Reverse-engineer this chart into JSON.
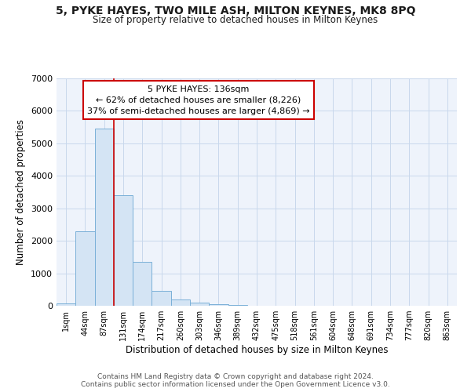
{
  "title1": "5, PYKE HAYES, TWO MILE ASH, MILTON KEYNES, MK8 8PQ",
  "title2": "Size of property relative to detached houses in Milton Keynes",
  "xlabel": "Distribution of detached houses by size in Milton Keynes",
  "ylabel": "Number of detached properties",
  "bin_labels": [
    "1sqm",
    "44sqm",
    "87sqm",
    "131sqm",
    "174sqm",
    "217sqm",
    "260sqm",
    "303sqm",
    "346sqm",
    "389sqm",
    "432sqm",
    "475sqm",
    "518sqm",
    "561sqm",
    "604sqm",
    "648sqm",
    "691sqm",
    "734sqm",
    "777sqm",
    "820sqm",
    "863sqm"
  ],
  "bar_heights": [
    70,
    2300,
    5450,
    3400,
    1350,
    450,
    190,
    100,
    60,
    30,
    0,
    0,
    0,
    0,
    0,
    0,
    0,
    0,
    0,
    0,
    0
  ],
  "bar_color": "#d4e4f4",
  "bar_edge_color": "#7ab0d8",
  "grid_color": "#c8d8ec",
  "annotation_line1": "5 PYKE HAYES: 136sqm",
  "annotation_line2": "← 62% of detached houses are smaller (8,226)",
  "annotation_line3": "37% of semi-detached houses are larger (4,869) →",
  "annotation_box_color": "white",
  "annotation_box_edge_color": "#cc0000",
  "vline_bin": 3,
  "vline_color": "#cc0000",
  "ylim": [
    0,
    7000
  ],
  "yticks": [
    0,
    1000,
    2000,
    3000,
    4000,
    5000,
    6000,
    7000
  ],
  "footer1": "Contains HM Land Registry data © Crown copyright and database right 2024.",
  "footer2": "Contains public sector information licensed under the Open Government Licence v3.0.",
  "bg_color": "#ffffff",
  "plot_bg_color": "#eef3fb"
}
